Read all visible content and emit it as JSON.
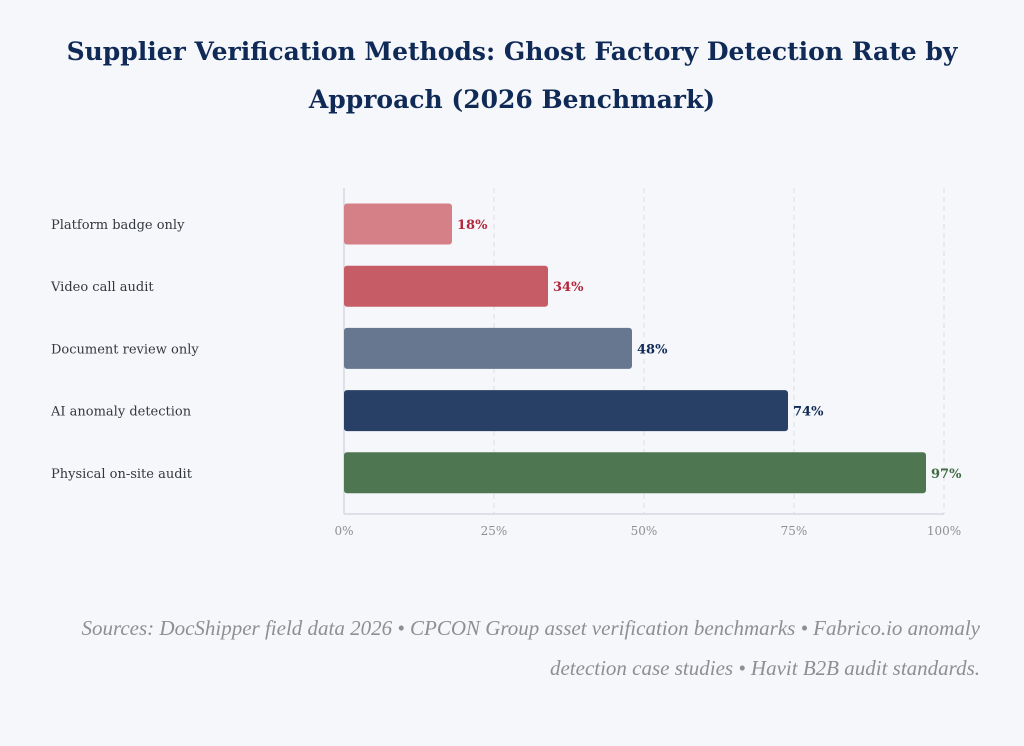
{
  "chart_data": {
    "type": "bar",
    "orientation": "horizontal",
    "title": "Supplier Verification Methods: Ghost Factory Detection Rate by Approach (2026 Benchmark)",
    "xlabel": "",
    "ylabel": "",
    "categories": [
      "Platform badge only",
      "Video call audit",
      "Document review only",
      "AI anomaly detection",
      "Physical on-site audit"
    ],
    "values": [
      18,
      34,
      48,
      74,
      97
    ],
    "value_labels": [
      "18%",
      "34%",
      "48%",
      "74%",
      "97%"
    ],
    "bar_colors": [
      "#d57f86",
      "#c65c66",
      "#67778f",
      "#283f66",
      "#4e7650"
    ],
    "label_colors": [
      "#b3263a",
      "#b3263a",
      "#0f2a56",
      "#0f2a56",
      "#3e6b40"
    ],
    "xlim": [
      0,
      100
    ],
    "xticks": [
      0,
      25,
      50,
      75,
      100
    ],
    "xtick_labels": [
      "0%",
      "25%",
      "50%",
      "75%",
      "100%"
    ],
    "grid": "vertical dashed",
    "legend": "none"
  },
  "sources": "Sources: DocShipper field data 2026 • CPCON Group asset verification benchmarks • Fabrico.io anomaly detection case studies • Havit B2B audit standards."
}
